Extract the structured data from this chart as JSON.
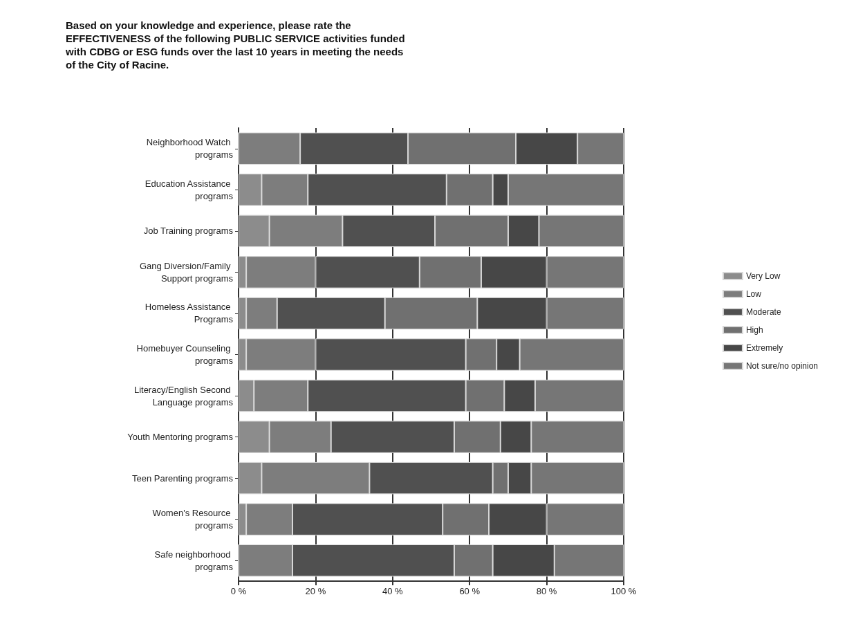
{
  "chart_data": {
    "type": "bar",
    "orientation": "horizontal",
    "stacked": true,
    "title": "Based on your knowledge and experience, please rate the EFFECTIVENESS of the following PUBLIC SERVICE activities funded with CDBG or ESG funds over the last 10 years in meeting the needs of the City of Racine.",
    "categories": [
      "Neighborhood Watch programs",
      "Education Assistance programs",
      "Job Training programs",
      "Gang Diversion/Family Support programs",
      "Homeless Assistance Programs",
      "Homebuyer Counseling programs",
      "Literacy/English Second Language programs",
      "Youth Mentoring programs",
      "Teen Parenting programs",
      "Women's Resource programs",
      "Safe neighborhood programs"
    ],
    "series": [
      {
        "name": "Very Low",
        "color": "#8c8c8c",
        "values": [
          0,
          6,
          8,
          2,
          2,
          2,
          4,
          8,
          6,
          2,
          0
        ]
      },
      {
        "name": "Low",
        "color": "#7d7d7d",
        "values": [
          16,
          12,
          19,
          18,
          8,
          18,
          14,
          16,
          28,
          12,
          14
        ]
      },
      {
        "name": "Moderate",
        "color": "#505050",
        "values": [
          28,
          36,
          24,
          27,
          28,
          39,
          41,
          32,
          32,
          39,
          42
        ]
      },
      {
        "name": "High",
        "color": "#707070",
        "values": [
          28,
          12,
          19,
          16,
          24,
          8,
          10,
          12,
          4,
          12,
          10
        ]
      },
      {
        "name": "Extremely",
        "color": "#474747",
        "values": [
          16,
          4,
          8,
          17,
          18,
          6,
          8,
          8,
          6,
          15,
          16
        ]
      },
      {
        "name": "Not sure/no opinion",
        "color": "#767676",
        "values": [
          12,
          30,
          22,
          20,
          20,
          27,
          23,
          24,
          24,
          20,
          18
        ]
      }
    ],
    "xlim": [
      0,
      100
    ],
    "xticks": [
      {
        "value": 0,
        "label": "0 %"
      },
      {
        "value": 20,
        "label": "20 %"
      },
      {
        "value": 40,
        "label": "40 %"
      },
      {
        "value": 60,
        "label": "60 %"
      },
      {
        "value": 80,
        "label": "80 %"
      },
      {
        "value": 100,
        "label": "100 %"
      }
    ],
    "grid": "x",
    "legend": "right"
  }
}
